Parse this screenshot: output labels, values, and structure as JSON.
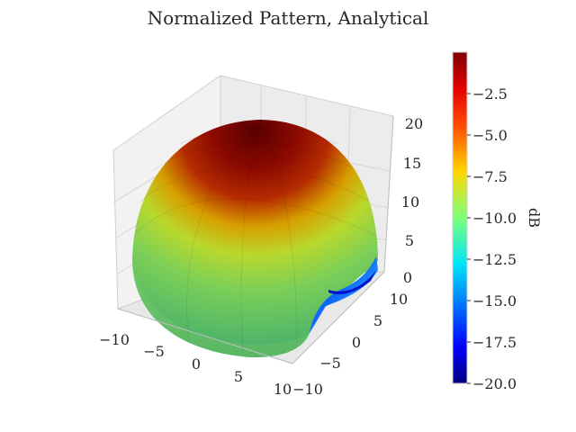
{
  "chart_data": {
    "type": "surface3d",
    "title": "Normalized Pattern, Analytical",
    "xlabel": "",
    "ylabel": "",
    "zlabel": "",
    "x_ticks": [
      "−10",
      "−5",
      "0",
      "5",
      "10"
    ],
    "y_ticks": [
      "−10",
      "−5",
      "0",
      "5",
      "10"
    ],
    "z_ticks": [
      "0",
      "5",
      "10",
      "15",
      "20"
    ],
    "xlim": [
      -10,
      10
    ],
    "ylim": [
      -10,
      10
    ],
    "zlim": [
      0,
      20
    ],
    "grid": true,
    "colorbar": {
      "label": "dB",
      "min": -20.0,
      "max": 0.0,
      "ticks": [
        "−2.5",
        "−5.0",
        "−7.5",
        "−10.0",
        "−12.5",
        "−15.0",
        "−17.5",
        "−20.0"
      ],
      "tick_values": [
        -2.5,
        -5.0,
        -7.5,
        -10.0,
        -12.5,
        -15.0,
        -17.5,
        -20.0
      ],
      "colormap": "jet"
    },
    "surface": {
      "shape": "dome with a cut-out quadrant",
      "peak_value_db": 0,
      "radius": 10,
      "height": 20
    }
  }
}
